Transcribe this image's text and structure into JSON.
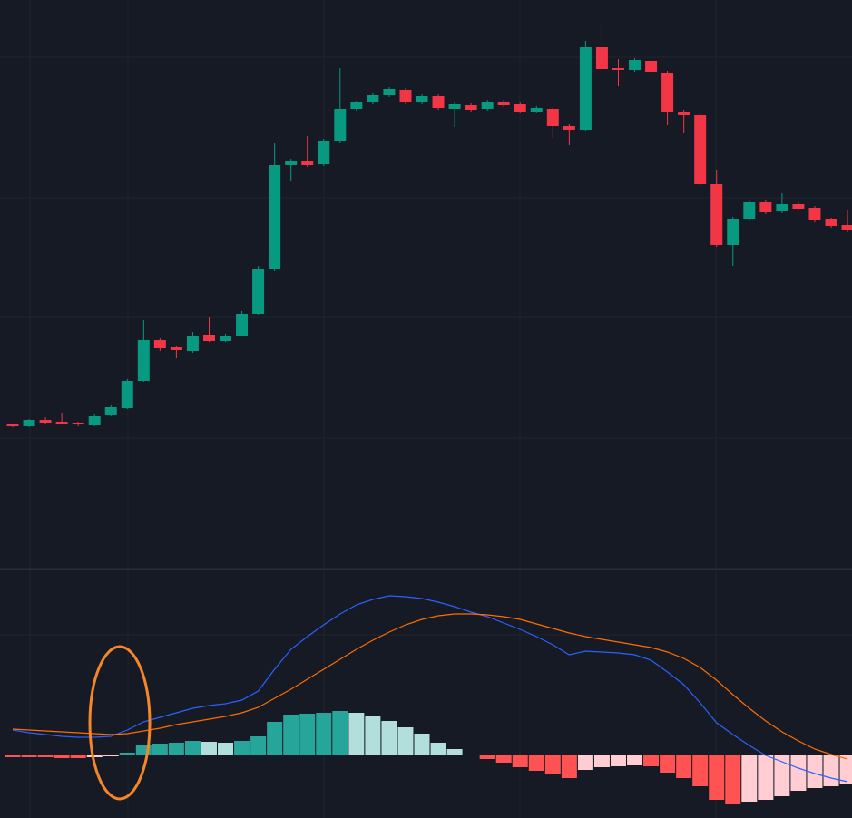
{
  "chart_data": [
    {
      "type": "candlestick",
      "ylim": [
        0,
        627
      ],
      "up_color": "#089981",
      "down_color": "#f23645",
      "open": [
        159,
        157,
        164,
        162,
        161,
        158,
        169,
        177,
        207,
        252,
        244,
        240,
        258,
        251,
        257,
        281,
        330,
        445,
        449,
        446,
        471,
        507,
        514,
        522,
        528,
        514,
        521,
        507,
        511,
        507,
        515,
        512,
        504,
        507,
        488,
        484,
        575,
        552,
        550,
        560,
        547,
        504,
        500,
        424,
        357,
        385,
        404,
        394,
        402,
        398,
        385,
        379
      ],
      "high": [
        160,
        165,
        167,
        172,
        162,
        170,
        180,
        209,
        274,
        254,
        246,
        261,
        277,
        259,
        284,
        334,
        469,
        452,
        477,
        474,
        552,
        516,
        525,
        531,
        530,
        523,
        523,
        514,
        513,
        517,
        517,
        514,
        510,
        509,
        490,
        582,
        600,
        562,
        563,
        562,
        549,
        506,
        502,
        439,
        388,
        406,
        406,
        414,
        404,
        400,
        387,
        395
      ],
      "low": [
        156,
        156,
        160,
        159,
        157,
        157,
        168,
        176,
        206,
        240,
        232,
        238,
        250,
        250,
        256,
        280,
        328,
        427,
        443,
        444,
        469,
        505,
        512,
        520,
        512,
        512,
        506,
        487,
        504,
        505,
        509,
        502,
        502,
        475,
        467,
        482,
        549,
        532,
        548,
        546,
        489,
        480,
        422,
        355,
        334,
        383,
        391,
        392,
        395,
        382,
        376,
        371
      ],
      "close": [
        157,
        164,
        161,
        160,
        159,
        168,
        178,
        207,
        252,
        243,
        241,
        257,
        251,
        257,
        281,
        330,
        445,
        450,
        445,
        472,
        507,
        514,
        522,
        529,
        514,
        521,
        508,
        512,
        506,
        515,
        511,
        504,
        508,
        488,
        484,
        575,
        551,
        550,
        561,
        548,
        504,
        500,
        424,
        357,
        386,
        404,
        393,
        402,
        397,
        384,
        378,
        373
      ]
    },
    {
      "type": "macd",
      "ylim": [
        -70,
        202
      ],
      "histogram": {
        "values": [
          -3,
          -3,
          -3,
          -4,
          -4,
          -3,
          -2,
          2,
          10,
          12,
          13,
          15,
          14,
          13,
          15,
          20,
          36,
          44,
          45,
          46,
          48,
          46,
          42,
          37,
          30,
          23,
          13,
          6,
          0,
          -5,
          -9,
          -14,
          -18,
          -22,
          -26,
          -17,
          -14,
          -13,
          -12,
          -13,
          -20,
          -26,
          -35,
          -50,
          -55,
          -52,
          -50,
          -46,
          -40,
          -37,
          -35,
          -32
        ],
        "colors": {
          "rise_up": "#26a69a",
          "fall_up": "#b2dfdb",
          "fall_down": "#ff5252",
          "rise_down": "#ffcdd2"
        }
      },
      "series": [
        {
          "color": "#2962ff",
          "values": [
            27,
            24,
            22,
            20,
            19,
            19,
            20,
            27,
            36,
            41,
            46,
            51,
            54,
            56,
            60,
            70,
            94,
            116,
            130,
            143,
            155,
            165,
            171,
            175,
            174,
            172,
            168,
            163,
            157,
            152,
            145,
            138,
            130,
            121,
            110,
            114,
            113,
            112,
            110,
            104,
            91,
            77,
            57,
            35,
            22,
            10,
            -1,
            -8,
            -15,
            -21,
            -26,
            -30
          ]
        },
        {
          "color": "#ff6d00",
          "values": [
            28,
            27,
            26,
            25,
            24,
            23,
            22,
            23,
            26,
            29,
            33,
            36,
            39,
            42,
            46,
            52,
            62,
            72,
            83,
            94,
            105,
            116,
            126,
            135,
            143,
            149,
            153,
            155,
            155,
            154,
            152,
            149,
            144,
            139,
            134,
            130,
            127,
            124,
            121,
            118,
            113,
            106,
            96,
            82,
            66,
            51,
            37,
            25,
            15,
            6,
            0,
            -5
          ]
        }
      ]
    }
  ]
}
